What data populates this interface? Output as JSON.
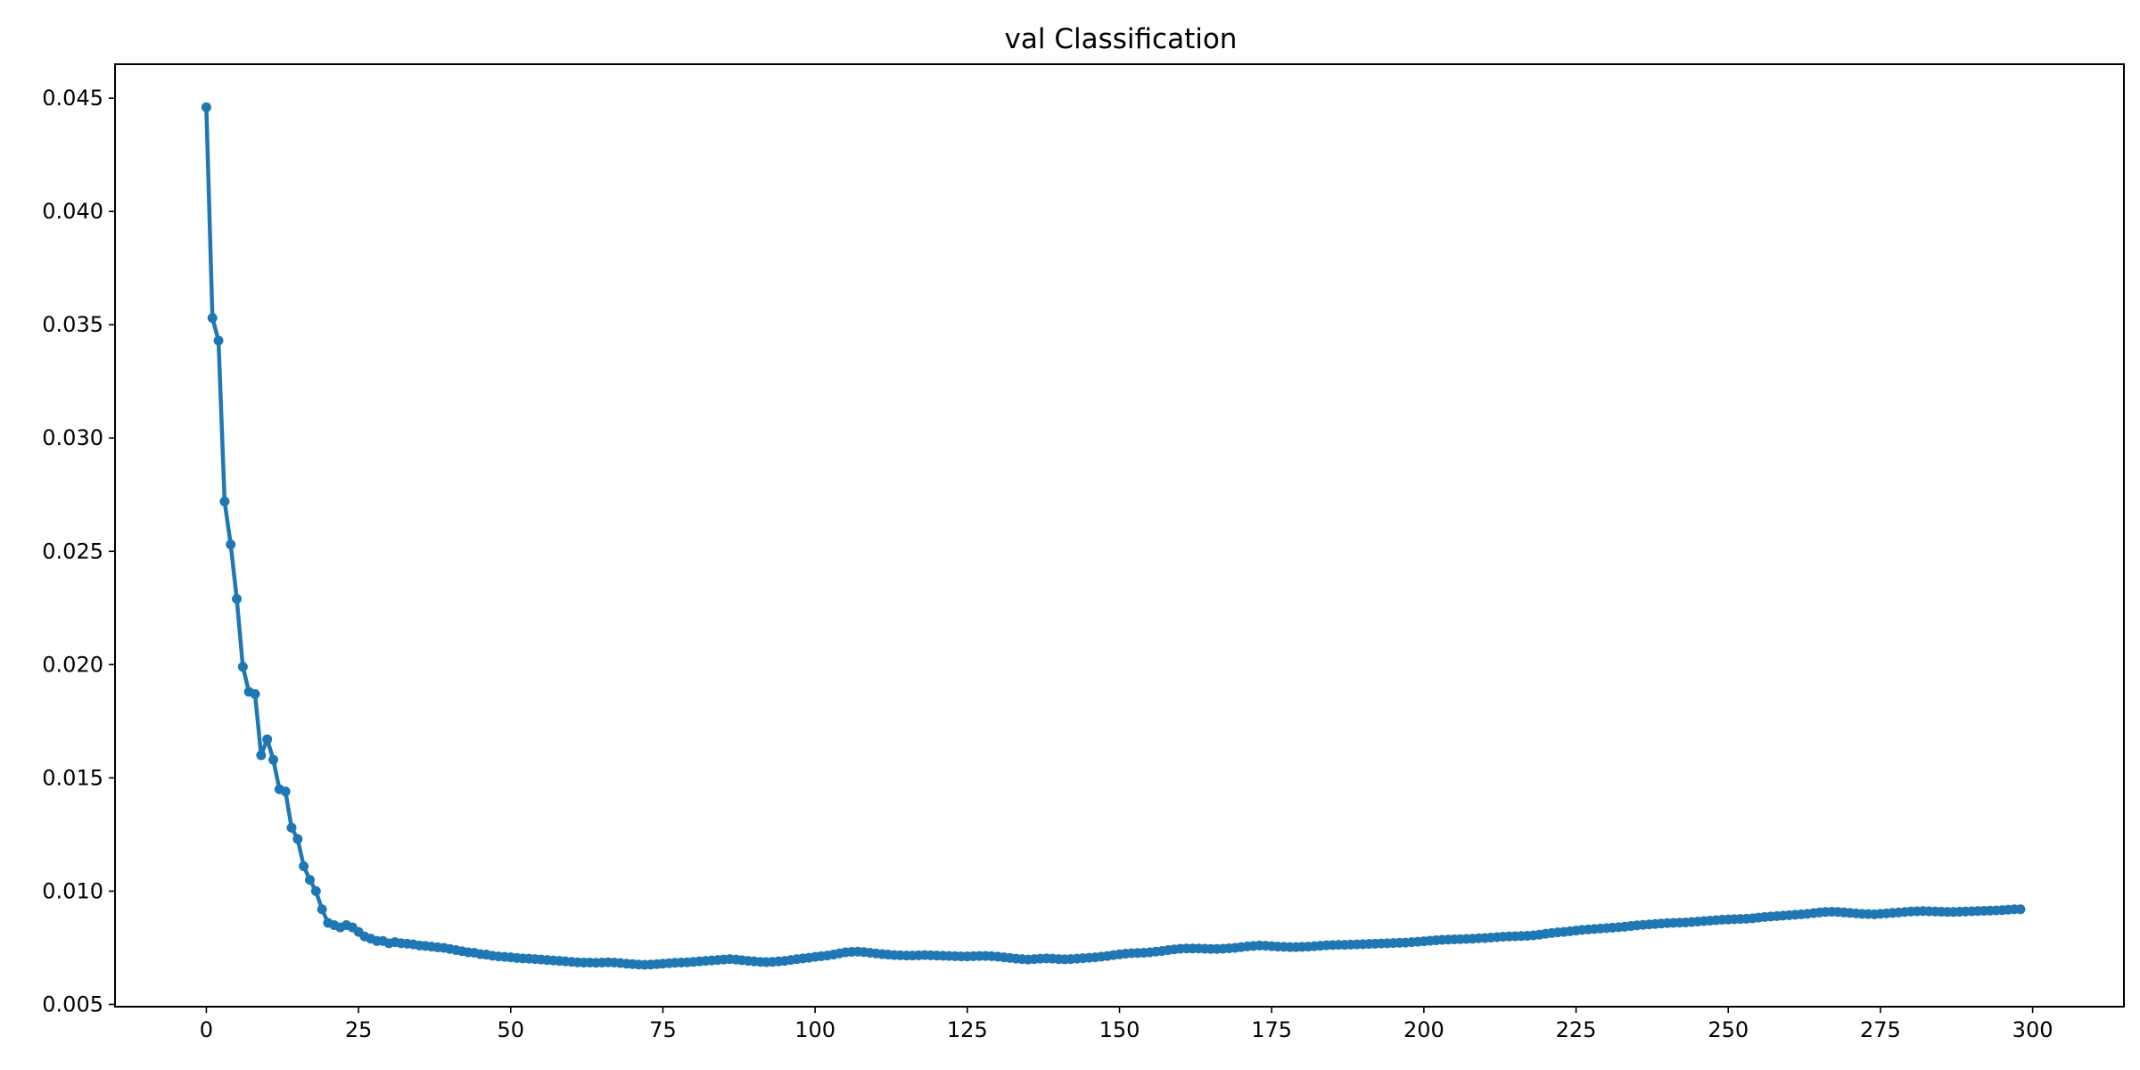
{
  "chart_data": {
    "type": "line",
    "title": "val Classification",
    "xlabel": "",
    "ylabel": "",
    "xlim": [
      -15,
      315
    ],
    "ylim": [
      0.0049,
      0.0465
    ],
    "x_ticks": [
      0,
      25,
      50,
      75,
      100,
      125,
      150,
      175,
      200,
      225,
      250,
      275,
      300
    ],
    "x_tick_labels": [
      "0",
      "25",
      "50",
      "75",
      "100",
      "125",
      "150",
      "175",
      "200",
      "225",
      "250",
      "275",
      "300"
    ],
    "y_ticks": [
      0.005,
      0.01,
      0.015,
      0.02,
      0.025,
      0.03,
      0.035,
      0.04,
      0.045
    ],
    "y_tick_labels": [
      "0.005",
      "0.010",
      "0.015",
      "0.020",
      "0.025",
      "0.030",
      "0.035",
      "0.040",
      "0.045"
    ],
    "grid": false,
    "series": [
      {
        "color": "#1f77b4",
        "marker": "circle",
        "x_start": 0,
        "x_step": 1,
        "y": [
          0.0446,
          0.0353,
          0.0343,
          0.0272,
          0.0253,
          0.0229,
          0.0199,
          0.0188,
          0.0187,
          0.016,
          0.0167,
          0.0158,
          0.0145,
          0.0144,
          0.0128,
          0.0123,
          0.0111,
          0.0105,
          0.01,
          0.0092,
          0.0086,
          0.0085,
          0.0084,
          0.0085,
          0.0084,
          0.0082,
          0.008,
          0.0079,
          0.0078,
          0.0078,
          0.0077,
          0.00775,
          0.0077,
          0.00768,
          0.00765,
          0.0076,
          0.00758,
          0.00755,
          0.00752,
          0.0075,
          0.00745,
          0.0074,
          0.00735,
          0.0073,
          0.00728,
          0.00722,
          0.0072,
          0.00715,
          0.00712,
          0.0071,
          0.00708,
          0.00705,
          0.00703,
          0.00702,
          0.007,
          0.00698,
          0.00696,
          0.00694,
          0.00692,
          0.0069,
          0.00688,
          0.00686,
          0.00685,
          0.00685,
          0.00684,
          0.00685,
          0.00686,
          0.00685,
          0.00683,
          0.0068,
          0.00678,
          0.00676,
          0.00675,
          0.00676,
          0.00678,
          0.0068,
          0.00682,
          0.00684,
          0.00685,
          0.00686,
          0.00688,
          0.0069,
          0.00692,
          0.00694,
          0.00696,
          0.00698,
          0.007,
          0.00698,
          0.00695,
          0.00692,
          0.0069,
          0.00688,
          0.00687,
          0.00688,
          0.0069,
          0.00692,
          0.00696,
          0.007,
          0.00703,
          0.00706,
          0.0071,
          0.00713,
          0.00716,
          0.0072,
          0.00725,
          0.0073,
          0.00732,
          0.00733,
          0.00731,
          0.00728,
          0.00725,
          0.00722,
          0.0072,
          0.00718,
          0.00717,
          0.00716,
          0.00716,
          0.00717,
          0.00718,
          0.00717,
          0.00716,
          0.00715,
          0.00714,
          0.00713,
          0.00712,
          0.00712,
          0.00713,
          0.00714,
          0.00714,
          0.00713,
          0.00711,
          0.00708,
          0.00705,
          0.00702,
          0.007,
          0.00698,
          0.007,
          0.00702,
          0.00703,
          0.00702,
          0.007,
          0.00699,
          0.007,
          0.00702,
          0.00704,
          0.00706,
          0.00708,
          0.00711,
          0.00714,
          0.00718,
          0.00721,
          0.00724,
          0.00726,
          0.00727,
          0.00728,
          0.0073,
          0.00733,
          0.00736,
          0.0074,
          0.00743,
          0.00746,
          0.00747,
          0.00747,
          0.00747,
          0.00746,
          0.00745,
          0.00745,
          0.00746,
          0.00748,
          0.0075,
          0.00753,
          0.00756,
          0.00758,
          0.0076,
          0.00759,
          0.00757,
          0.00755,
          0.00754,
          0.00753,
          0.00753,
          0.00754,
          0.00755,
          0.00757,
          0.00759,
          0.00761,
          0.00762,
          0.00763,
          0.00763,
          0.00764,
          0.00765,
          0.00766,
          0.00767,
          0.00768,
          0.00769,
          0.0077,
          0.00771,
          0.00772,
          0.00773,
          0.00775,
          0.00777,
          0.00779,
          0.00781,
          0.00783,
          0.00785,
          0.00786,
          0.00787,
          0.00788,
          0.00789,
          0.0079,
          0.00792,
          0.00793,
          0.00795,
          0.00797,
          0.00799,
          0.008,
          0.00801,
          0.00802,
          0.00803,
          0.00805,
          0.00808,
          0.00812,
          0.00815,
          0.00818,
          0.0082,
          0.00823,
          0.00826,
          0.00829,
          0.00831,
          0.00833,
          0.00835,
          0.00837,
          0.00839,
          0.00841,
          0.00843,
          0.00846,
          0.00849,
          0.00851,
          0.00853,
          0.00855,
          0.00857,
          0.00859,
          0.0086,
          0.00861,
          0.00862,
          0.00864,
          0.00866,
          0.00868,
          0.0087,
          0.00872,
          0.00874,
          0.00875,
          0.00876,
          0.00877,
          0.00878,
          0.0088,
          0.00883,
          0.00886,
          0.00888,
          0.0089,
          0.00892,
          0.00894,
          0.00896,
          0.00898,
          0.009,
          0.00903,
          0.00906,
          0.00908,
          0.00909,
          0.00908,
          0.00906,
          0.00904,
          0.00902,
          0.009,
          0.00899,
          0.00898,
          0.009,
          0.00902,
          0.00904,
          0.00906,
          0.00908,
          0.0091,
          0.00911,
          0.00912,
          0.00911,
          0.0091,
          0.00909,
          0.00908,
          0.00908,
          0.00909,
          0.0091,
          0.00911,
          0.00912,
          0.00913,
          0.00914,
          0.00915,
          0.00916,
          0.00918,
          0.0092,
          0.0092
        ]
      }
    ]
  }
}
